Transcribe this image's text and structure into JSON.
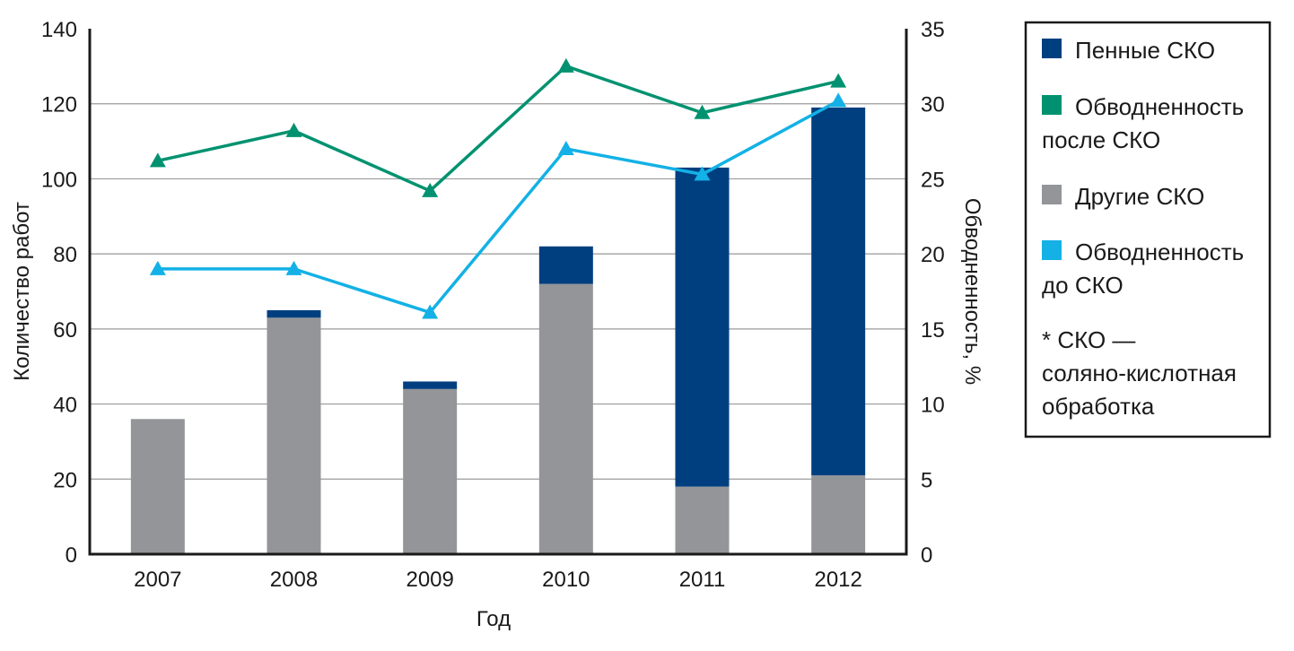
{
  "chart_data": {
    "type": "bar",
    "title": "",
    "xlabel": "Год",
    "ylabel": "Количество работ",
    "y2label": "Обводненность, %",
    "categories": [
      "2007",
      "2008",
      "2009",
      "2010",
      "2011",
      "2012"
    ],
    "ylim": [
      0,
      140
    ],
    "y_ticks": [
      "0",
      "20",
      "40",
      "60",
      "80",
      "100",
      "120",
      "140"
    ],
    "y2lim": [
      0,
      35
    ],
    "y2_ticks": [
      "0",
      "5",
      "10",
      "15",
      "20",
      "25",
      "30",
      "35"
    ],
    "grid": true,
    "bar_series": [
      {
        "name": "Другие СКО",
        "color": "#939598",
        "values": [
          36,
          63,
          44,
          72,
          18,
          21
        ]
      },
      {
        "name": "Пенные СКО",
        "color": "#003f7f",
        "values": [
          0,
          2,
          2,
          10,
          85,
          98
        ]
      }
    ],
    "line_series": [
      {
        "name": "Обводненность после СКО",
        "color": "#009270",
        "marker": "triangle",
        "axis": "right",
        "values": [
          26.2,
          28.2,
          24.2,
          32.5,
          29.4,
          31.5
        ]
      },
      {
        "name": "Обводненность до СКО",
        "color": "#13b1e6",
        "marker": "triangle",
        "axis": "right",
        "values": [
          19.0,
          19.0,
          16.1,
          27.0,
          25.3,
          30.2
        ]
      }
    ],
    "legend": {
      "placement": "right",
      "items": [
        {
          "lines": [
            "Пенные СКО"
          ],
          "color": "#003f7f"
        },
        {
          "lines": [
            "Обводненность",
            "после СКО"
          ],
          "color": "#009270"
        },
        {
          "lines": [
            "Другие СКО"
          ],
          "color": "#939598"
        },
        {
          "lines": [
            "Обводненность",
            "до СКО"
          ],
          "color": "#13b1e6"
        }
      ],
      "note": [
        "* СКО —",
        "соляно-кислотная",
        "обработка"
      ]
    }
  }
}
